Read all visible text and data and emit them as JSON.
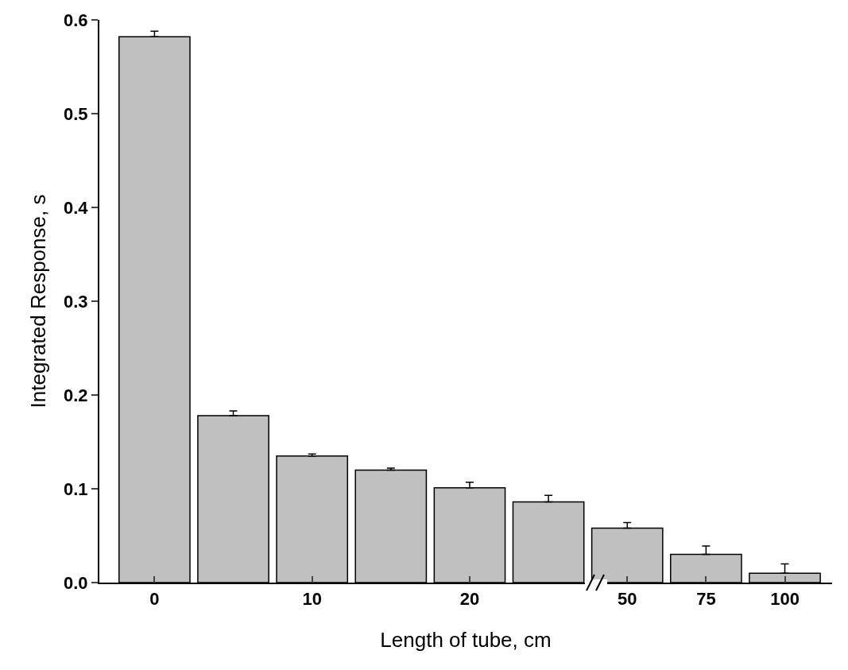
{
  "chart_data": {
    "type": "bar",
    "xlabel": "Length of tube, cm",
    "ylabel": "Integrated Response, s",
    "categories": [
      "0",
      null,
      "10",
      null,
      "20",
      null,
      "50",
      "75",
      "100"
    ],
    "values": [
      0.582,
      0.178,
      0.135,
      0.12,
      0.101,
      0.086,
      0.058,
      0.03,
      0.01
    ],
    "errors": [
      [
        0.582,
        0.588
      ],
      [
        0.178,
        0.183
      ],
      [
        0.135,
        0.137
      ],
      [
        0.12,
        0.122
      ],
      [
        0.101,
        0.107
      ],
      [
        0.086,
        0.093
      ],
      [
        0.058,
        0.064
      ],
      [
        0.03,
        0.039
      ],
      [
        0.01,
        0.02
      ]
    ],
    "color": "#c0c0c0",
    "ylim": [
      0,
      0.6
    ],
    "yticks": [
      {
        "value": 0,
        "label": "0.0"
      },
      {
        "value": 0.1,
        "label": "0.1"
      },
      {
        "value": 0.2,
        "label": "0.2"
      },
      {
        "value": 0.3,
        "label": "0.3"
      },
      {
        "value": 0.4,
        "label": "0.4"
      },
      {
        "value": 0.5,
        "label": "0.5"
      },
      {
        "value": 0.6,
        "label": "0.6"
      }
    ],
    "grid": false,
    "legend": false
  }
}
